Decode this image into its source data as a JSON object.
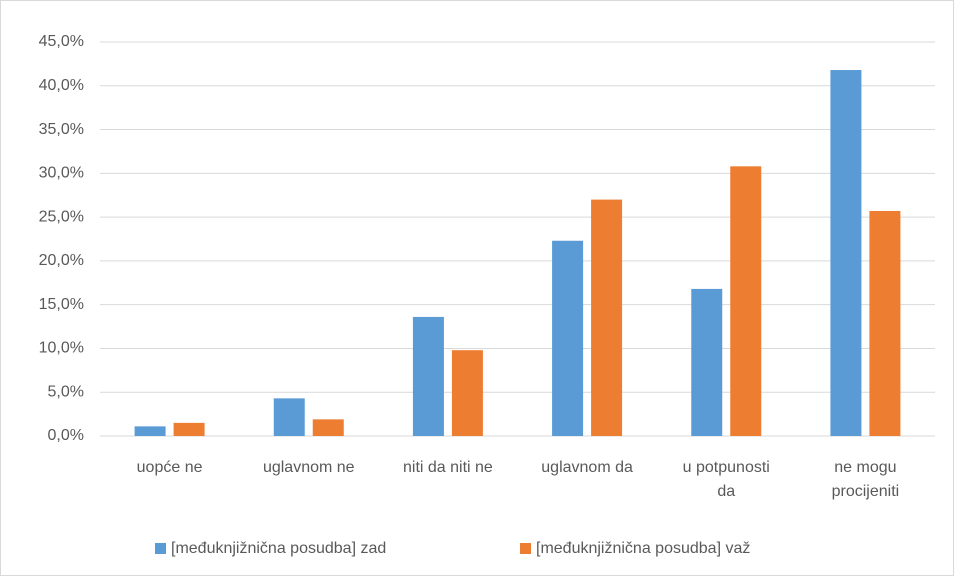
{
  "chart_data": {
    "type": "bar",
    "categories": [
      "uopće ne",
      "uglavnom ne",
      "niti da niti ne",
      "uglavnom da",
      "u potpunosti\nda",
      "ne mogu\nprocijeniti"
    ],
    "series": [
      {
        "name": "[međuknjižnična posudba] zad",
        "color": "#5b9bd5",
        "values": [
          1.1,
          4.3,
          13.6,
          22.3,
          16.8,
          41.8
        ]
      },
      {
        "name": "[međuknjižnična posudba] važ",
        "color": "#ed7d31",
        "values": [
          1.5,
          1.9,
          9.8,
          27.0,
          30.8,
          25.7
        ]
      }
    ],
    "ylim": [
      0,
      45
    ],
    "yticks": [
      {
        "value": 0,
        "label": "0,0%"
      },
      {
        "value": 5,
        "label": "5,0%"
      },
      {
        "value": 10,
        "label": "10,0%"
      },
      {
        "value": 15,
        "label": "15,0%"
      },
      {
        "value": 20,
        "label": "20,0%"
      },
      {
        "value": 25,
        "label": "25,0%"
      },
      {
        "value": 30,
        "label": "30,0%"
      },
      {
        "value": 35,
        "label": "35,0%"
      },
      {
        "value": 40,
        "label": "40,0%"
      },
      {
        "value": 45,
        "label": "45,0%"
      }
    ],
    "grid": true,
    "legend": "bottom"
  }
}
